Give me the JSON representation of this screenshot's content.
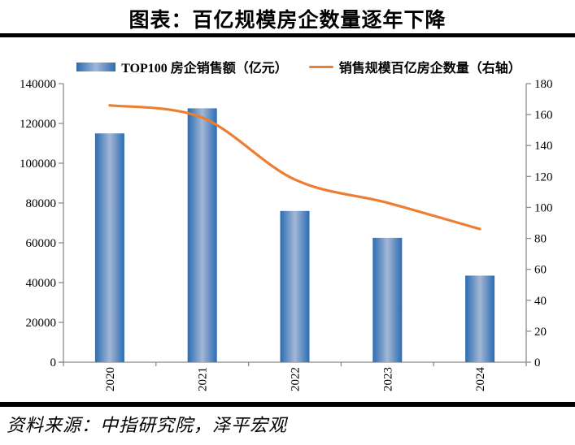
{
  "title": "图表：百亿规模房企数量逐年下降",
  "source": "资料来源：中指研究院，泽平宏观",
  "legend": {
    "bar_label": "TOP100 房企销售额（亿元）",
    "line_label": "销售规模百亿房企数量（右轴）"
  },
  "colors": {
    "bar_edge": "#2B6CB4",
    "bar_center": "#A3B7D4",
    "line": "#ED7D31",
    "axis": "#8C8C8C",
    "rule": "#000000",
    "text": "#000000"
  },
  "chart_data": {
    "type": "bar",
    "categories": [
      "2020",
      "2021",
      "2022",
      "2023",
      "2024"
    ],
    "series": [
      {
        "name": "TOP100 房企销售额（亿元）",
        "type": "bar",
        "axis": "left",
        "values": [
          115000,
          127600,
          76000,
          62500,
          43500
        ]
      },
      {
        "name": "销售规模百亿房企数量（右轴）",
        "type": "line",
        "axis": "right",
        "values": [
          166,
          158,
          118,
          103,
          86
        ]
      }
    ],
    "left_axis": {
      "min": 0,
      "max": 140000,
      "step": 20000
    },
    "right_axis": {
      "min": 0,
      "max": 180,
      "step": 20
    },
    "legend_position": "top",
    "grid": false,
    "line_smooth": true
  }
}
